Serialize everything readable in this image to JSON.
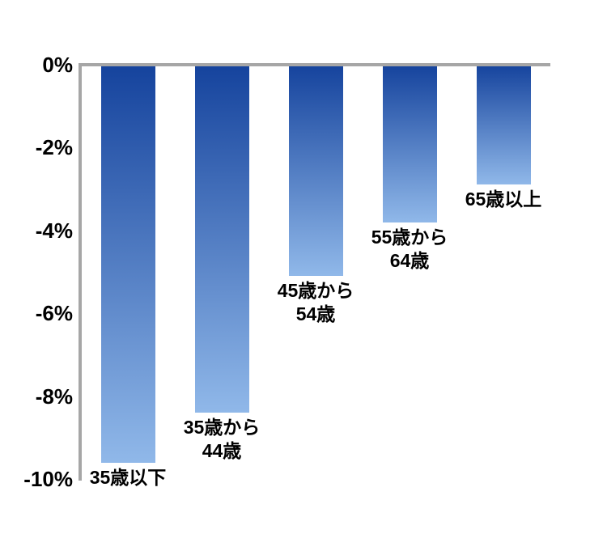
{
  "chart_data": {
    "type": "bar",
    "title": "",
    "orientation": "vertical-negative",
    "categories": [
      "35歳以下",
      "35歳から44歳",
      "45歳から54歳",
      "55歳から64歳",
      "65歳以上"
    ],
    "category_label_lines": [
      [
        "35歳以下"
      ],
      [
        "35歳から",
        "44歳"
      ],
      [
        "45歳から",
        "54歳"
      ],
      [
        "55歳から",
        "64歳"
      ],
      [
        "65歳以上"
      ]
    ],
    "values": [
      -9.6,
      -8.4,
      -5.1,
      -3.8,
      -2.9
    ],
    "unit": "%",
    "xlabel": "",
    "ylabel": "",
    "ylim": [
      -10,
      0
    ],
    "yticks": [
      {
        "label": "0%",
        "value": 0
      },
      {
        "label": "-2%",
        "value": -2
      },
      {
        "label": "-4%",
        "value": -4
      },
      {
        "label": "-6%",
        "value": -6
      },
      {
        "label": "-8%",
        "value": -8
      },
      {
        "label": "-10%",
        "value": -10
      }
    ],
    "grid": false,
    "legend_position": "none",
    "colors": {
      "bar_gradient_top": "#15439D",
      "bar_gradient_bottom": "#90B8E9",
      "axis": "#A6A6A6",
      "text": "#000000",
      "background": "#FFFFFF"
    }
  }
}
